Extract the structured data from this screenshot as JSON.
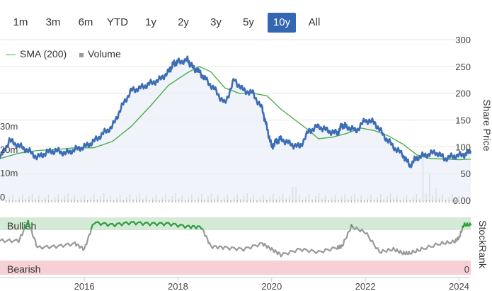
{
  "range_selector": {
    "buttons": [
      "1m",
      "3m",
      "6m",
      "YTD",
      "1y",
      "2y",
      "3y",
      "5y",
      "10y",
      "All"
    ],
    "selected": "10y",
    "active_color": "#3366b3"
  },
  "legend": {
    "sma_label": "SMA (200)",
    "volume_label": "Volume"
  },
  "colors": {
    "price": "#3c6db5",
    "sma": "#4cae4c",
    "volume": "#b5b5b5",
    "bullish_band": "#d4ead7",
    "bearish_band": "#f6d0d4",
    "rank_bullish": "#2e9e3e",
    "rank_neutral": "#9a9a9a"
  },
  "labels": {
    "share_price_axis": "Share Price",
    "stockrank_axis": "StockRank",
    "bullish": "Bullish",
    "bearish": "Bearish"
  },
  "chart_data": [
    {
      "type": "line",
      "title": "",
      "ylabel": "Share Price",
      "ylim": [
        0,
        300
      ],
      "y_ticks": [
        "0.00",
        "50",
        "100",
        "150",
        "200",
        "250",
        "300"
      ],
      "volume_ticks": [
        "0",
        "10m",
        "20m",
        "30m"
      ],
      "x_ticks": [
        "2016",
        "2018",
        "2020",
        "2022",
        "2024"
      ],
      "x_range": [
        2014.2,
        2024.25
      ],
      "series": [
        {
          "name": "",
          "x": [
            2014.2,
            2014.4,
            2014.6,
            2014.8,
            2015.0,
            2015.2,
            2015.4,
            2015.6,
            2015.8,
            2016.0,
            2016.2,
            2016.4,
            2016.6,
            2016.8,
            2017.0,
            2017.2,
            2017.4,
            2017.6,
            2017.8,
            2017.9,
            2018.0,
            2018.2,
            2018.3,
            2018.45,
            2018.6,
            2018.8,
            2019.0,
            2019.2,
            2019.4,
            2019.6,
            2019.8,
            2019.9,
            2020.0,
            2020.1,
            2020.2,
            2020.4,
            2020.6,
            2020.8,
            2021.0,
            2021.2,
            2021.4,
            2021.5,
            2021.6,
            2021.8,
            2022.0,
            2022.2,
            2022.4,
            2022.6,
            2022.8,
            2022.95,
            2023.1,
            2023.3,
            2023.5,
            2023.7,
            2023.9,
            2024.1,
            2024.25
          ],
          "values": [
            78,
            112,
            102,
            93,
            80,
            90,
            93,
            88,
            95,
            100,
            110,
            125,
            138,
            175,
            205,
            210,
            218,
            225,
            240,
            255,
            258,
            262,
            250,
            240,
            225,
            205,
            180,
            225,
            205,
            200,
            170,
            135,
            100,
            110,
            115,
            105,
            100,
            130,
            138,
            130,
            125,
            140,
            138,
            130,
            150,
            145,
            120,
            100,
            85,
            65,
            80,
            85,
            90,
            78,
            83,
            85,
            92
          ]
        },
        {
          "name": "SMA (200)",
          "x": [
            2014.2,
            2014.6,
            2015.0,
            2015.4,
            2015.8,
            2016.2,
            2016.6,
            2017.0,
            2017.4,
            2017.8,
            2018.2,
            2018.45,
            2018.7,
            2019.0,
            2019.3,
            2019.6,
            2019.9,
            2020.2,
            2020.5,
            2020.8,
            2021.0,
            2021.3,
            2021.6,
            2021.9,
            2022.2,
            2022.5,
            2022.8,
            2023.1,
            2023.4,
            2023.7,
            2024.0,
            2024.25
          ],
          "values": [
            78,
            88,
            93,
            95,
            98,
            98,
            110,
            138,
            175,
            215,
            238,
            250,
            240,
            210,
            200,
            200,
            195,
            170,
            150,
            130,
            115,
            118,
            125,
            135,
            130,
            120,
            105,
            85,
            78,
            77,
            76,
            77
          ]
        }
      ]
    },
    {
      "type": "line",
      "title": "",
      "ylabel": "StockRank",
      "ylim": [
        0,
        100
      ],
      "y_ticks": [
        "0"
      ],
      "bands": [
        "Bullish",
        "Bearish"
      ],
      "series": [
        {
          "name": "",
          "x": [
            2014.2,
            2014.6,
            2014.8,
            2015.0,
            2015.4,
            2015.8,
            2016.0,
            2016.2,
            2016.6,
            2017.0,
            2017.4,
            2017.8,
            2018.2,
            2018.5,
            2018.7,
            2019.0,
            2019.4,
            2019.8,
            2020.0,
            2020.2,
            2020.6,
            2021.0,
            2021.4,
            2021.5,
            2021.7,
            2022.0,
            2022.3,
            2022.6,
            2022.8,
            2022.95,
            2023.2,
            2023.6,
            2023.9,
            2024.0,
            2024.1,
            2024.25
          ],
          "values": [
            60,
            60,
            93,
            48,
            50,
            55,
            45,
            92,
            88,
            92,
            90,
            90,
            85,
            84,
            50,
            48,
            45,
            55,
            45,
            35,
            45,
            40,
            48,
            50,
            85,
            75,
            40,
            45,
            38,
            38,
            45,
            55,
            58,
            65,
            88,
            88
          ]
        }
      ]
    }
  ]
}
